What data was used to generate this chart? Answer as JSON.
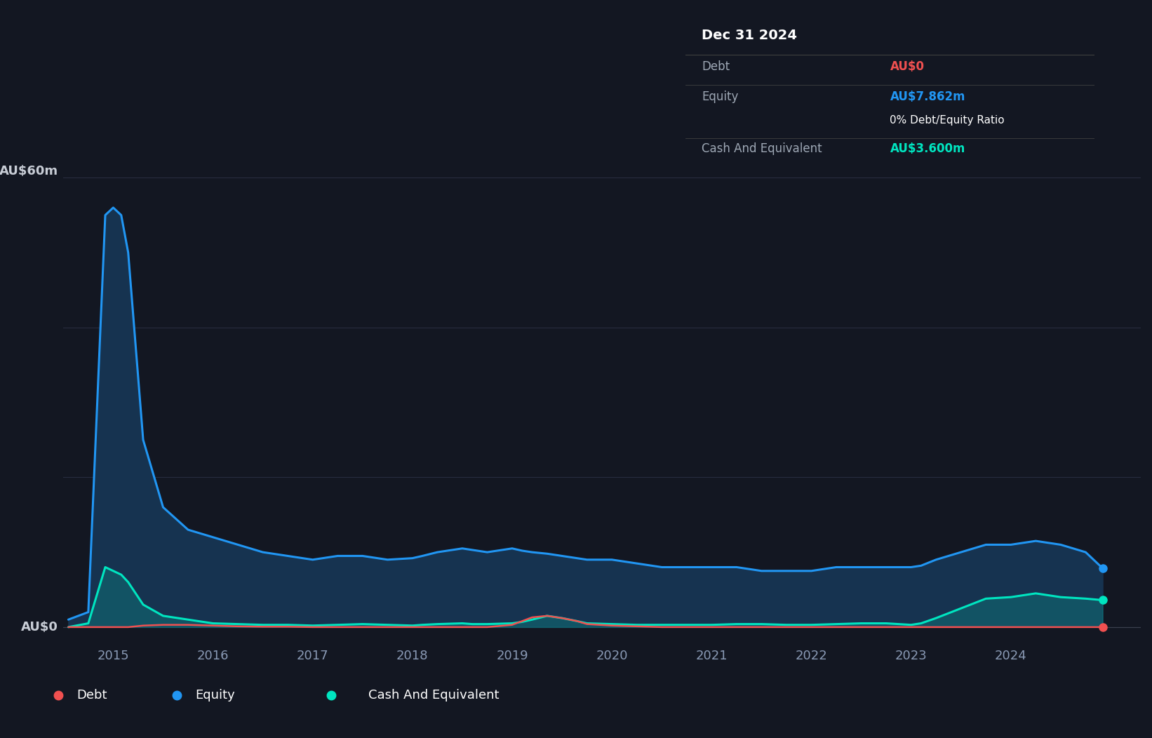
{
  "background_color": "#131722",
  "plot_bg_color": "#131722",
  "grid_color": "#2a2e39",
  "ylabel_60": "AU$60m",
  "ylabel_0": "AU$0",
  "equity_color": "#2196f3",
  "equity_fill_color": "#163350",
  "debt_color": "#f05050",
  "cash_color": "#00e5c0",
  "cash_fill_color": "#00e5c0",
  "legend_debt_label": "Debt",
  "legend_equity_label": "Equity",
  "legend_cash_label": "Cash And Equivalent",
  "tooltip_bg": "#050505",
  "tooltip_title": "Dec 31 2024",
  "tooltip_debt_label": "Debt",
  "tooltip_debt_value": "AU$0",
  "tooltip_equity_label": "Equity",
  "tooltip_equity_value": "AU$7.862m",
  "tooltip_ratio_label": "0% Debt/Equity Ratio",
  "tooltip_cash_label": "Cash And Equivalent",
  "tooltip_cash_value": "AU$3.600m",
  "debt_color_tooltip": "#f05050",
  "equity_color_tooltip": "#2196f3",
  "cash_color_tooltip": "#00e5c0",
  "xlim_start": 2014.5,
  "xlim_end": 2025.3,
  "ylim_bottom": -2,
  "ylim_top": 65,
  "dates": [
    2014.55,
    2014.75,
    2014.92,
    2015.0,
    2015.08,
    2015.15,
    2015.3,
    2015.5,
    2015.75,
    2016.0,
    2016.25,
    2016.5,
    2016.75,
    2017.0,
    2017.25,
    2017.5,
    2017.75,
    2018.0,
    2018.1,
    2018.25,
    2018.5,
    2018.6,
    2018.75,
    2019.0,
    2019.1,
    2019.2,
    2019.35,
    2019.5,
    2019.65,
    2019.75,
    2020.0,
    2020.25,
    2020.5,
    2020.75,
    2021.0,
    2021.25,
    2021.5,
    2021.75,
    2022.0,
    2022.25,
    2022.5,
    2022.75,
    2023.0,
    2023.1,
    2023.25,
    2023.5,
    2023.75,
    2024.0,
    2024.25,
    2024.5,
    2024.75,
    2024.92
  ],
  "equity_values": [
    1,
    2,
    55,
    56,
    55,
    50,
    25,
    16,
    13,
    12,
    11,
    10,
    9.5,
    9,
    9.5,
    9.5,
    9,
    9.2,
    9.5,
    10,
    10.5,
    10.3,
    10,
    10.5,
    10.2,
    10,
    9.8,
    9.5,
    9.2,
    9,
    9,
    8.5,
    8,
    8,
    8,
    8,
    7.5,
    7.5,
    7.5,
    8,
    8,
    8,
    8,
    8.2,
    9,
    10,
    11,
    11,
    11.5,
    11,
    10,
    7.862
  ],
  "debt_values": [
    0,
    0,
    0,
    0,
    0,
    0,
    0.2,
    0.3,
    0.3,
    0.2,
    0.1,
    0.05,
    0.05,
    0,
    0,
    0,
    0,
    0,
    0,
    0,
    0,
    0,
    0,
    0.3,
    0.8,
    1.3,
    1.5,
    1.2,
    0.8,
    0.4,
    0.2,
    0.1,
    0,
    0,
    0,
    0,
    0,
    0,
    0,
    0,
    0,
    0,
    0,
    0,
    0,
    0,
    0,
    0,
    0,
    0,
    0,
    0
  ],
  "cash_values": [
    0,
    0.5,
    8,
    7.5,
    7,
    6,
    3,
    1.5,
    1,
    0.5,
    0.4,
    0.3,
    0.3,
    0.2,
    0.3,
    0.4,
    0.3,
    0.2,
    0.3,
    0.4,
    0.5,
    0.4,
    0.4,
    0.5,
    0.7,
    1.0,
    1.5,
    1.2,
    0.8,
    0.5,
    0.4,
    0.3,
    0.3,
    0.3,
    0.3,
    0.4,
    0.4,
    0.3,
    0.3,
    0.4,
    0.5,
    0.5,
    0.3,
    0.5,
    1.2,
    2.5,
    3.8,
    4.0,
    4.5,
    4.0,
    3.8,
    3.6
  ]
}
